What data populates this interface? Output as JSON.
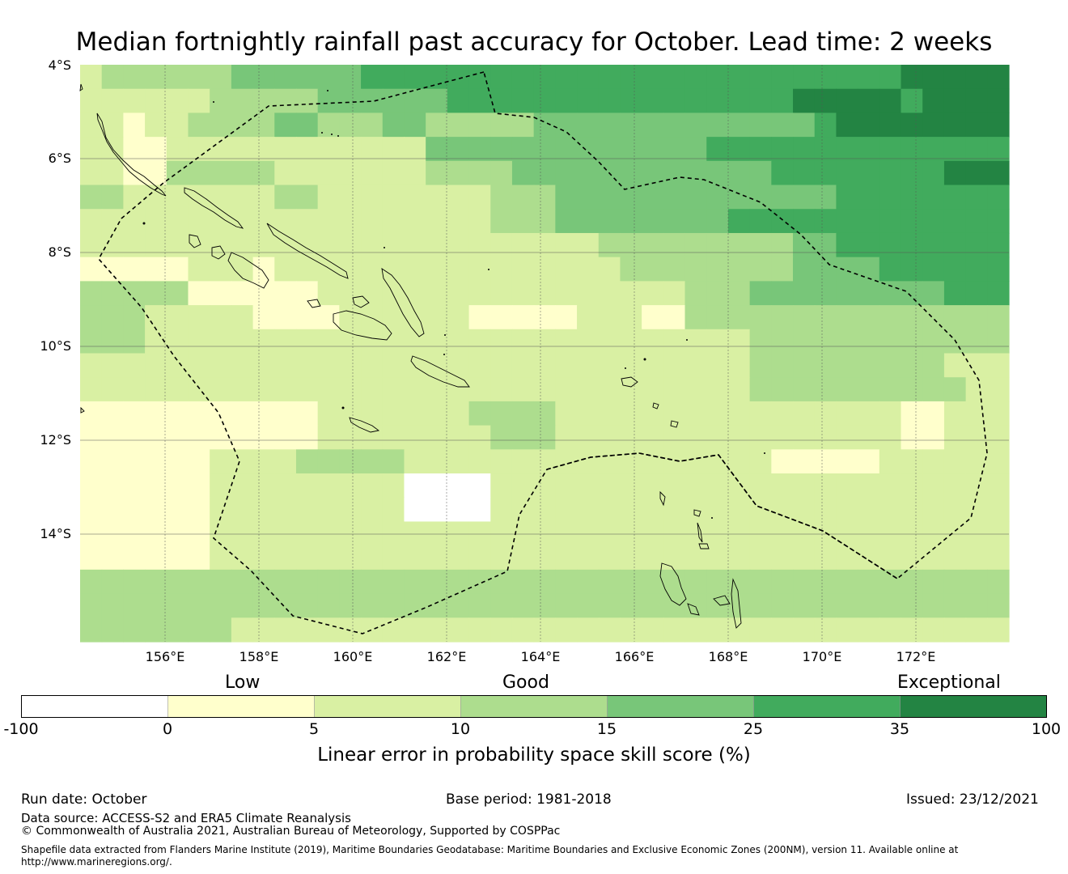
{
  "title": "Median fortnightly rainfall past accuracy for October. Lead time: 2 weeks",
  "map": {
    "lat_labels": [
      "4°S",
      "6°S",
      "8°S",
      "10°S",
      "12°S",
      "14°S"
    ],
    "lon_labels": [
      "156°E",
      "158°E",
      "160°E",
      "162°E",
      "164°E",
      "166°E",
      "168°E",
      "170°E",
      "172°E"
    ],
    "lon_range": [
      154.2,
      174.0
    ],
    "lat_range": [
      -4.0,
      -16.3
    ],
    "grid_lines": true,
    "boundary_style": "dashed",
    "region": "Solomon Islands, Vanuatu"
  },
  "colorbar": {
    "category_labels": [
      "Low",
      "Good",
      "Exceptional"
    ],
    "tick_labels": [
      "-100",
      "0",
      "5",
      "10",
      "15",
      "25",
      "35",
      "100"
    ],
    "colors": [
      "#ffffff",
      "#ffffcc",
      "#d9f0a3",
      "#addd8e",
      "#78c679",
      "#41ab5d",
      "#238443"
    ],
    "caption": "Linear error in probability space skill score (%)"
  },
  "heatmap_palette": {
    "class_colors": [
      "#ffffff",
      "#ffffcc",
      "#d9f0a3",
      "#addd8e",
      "#78c679",
      "#41ab5d",
      "#238443"
    ],
    "grid": [
      "2333333444444555555555555555555555555566666",
      "2222223333344444455555555555555556666656666",
      "2212233334433344333334444444444444566666666",
      "2211222222222222444444444444455555555555555",
      "2211333332222222333344444444444455555555666",
      "3322222223322222222333444444444444455555555",
      "2222222222222222222333444444445555555555555",
      "2222222222222222222222223333333334455555555",
      "1111122212222222222222222333333334444555555",
      "3333311111122222222222222222333444444444555",
      "3332222211112222221111122211333333333333333",
      "3332222222222222222222222222222333333333333",
      "2222222222222222222222222222222333333333222",
      "2222222222222222222222222222222333333333322",
      "1111111111122222223333222222222222222211222",
      "1111111111122222222333222222222222222211222",
      "1111112222333332222222222222222211111222222",
      "1111112222222220000222222222222222222222222",
      "1111112222222220000222222222222222222222222",
      "1111112222222222222222222222222222222222222",
      "1111112222222222222222222222222222222222222",
      "3333333333333333333333333333333333333333333",
      "3333333333333333333333333333333333333333333",
      "3333333222222222222222222222222222222222222"
    ]
  },
  "footer": {
    "run_date": "Run date: October",
    "base_period": "Base period: 1981-2018",
    "issued": "Issued: 23/12/2021",
    "data_source": "Data source: ACCESS-S2 and ERA5 Climate Reanalysis",
    "copyright": "© Commonwealth of Australia 2021, Australian Bureau of Meteorology, Supported by COSPPac",
    "shapefile_note": "Shapefile data extracted from Flanders Marine Institute (2019), Maritime Boundaries Geodatabase: Maritime Boundaries and Exclusive Economic Zones (200NM), version 11. Available online at",
    "shapefile_url": "http://www.marineregions.org/."
  }
}
